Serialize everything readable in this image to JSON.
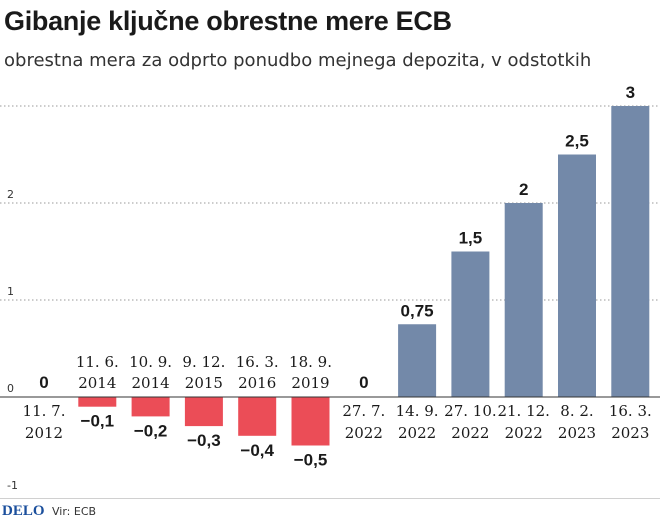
{
  "title": "Gibanje ključne obrestne mere ECB",
  "subtitle": "obrestna mera za odprto ponudbo mejnega depozita, v odstotkih",
  "footer": {
    "logo": "DELO",
    "source": "Vir: ECB"
  },
  "colors": {
    "positive": "#7389a9",
    "negative": "#eb4d57",
    "grid": "#999999",
    "text": "#1a1a1a"
  },
  "chart_data": {
    "type": "bar",
    "title": "Gibanje ključne obrestne mere ECB",
    "subtitle": "obrestna mera za odprto ponudbo mejnega depozita, v odstotkih",
    "xlabel": "",
    "ylabel": "",
    "ylim": [
      -1,
      3
    ],
    "yticks": [
      -1,
      0,
      1,
      2
    ],
    "ytick_labels": [
      "-1",
      "0",
      "1",
      "2"
    ],
    "grid": true,
    "categories": [
      [
        "11. 7.",
        "2012"
      ],
      [
        "11. 6.",
        "2014"
      ],
      [
        "10. 9.",
        "2014"
      ],
      [
        "9. 12.",
        "2015"
      ],
      [
        "16. 3.",
        "2016"
      ],
      [
        "18. 9.",
        "2019"
      ],
      [
        "27. 7.",
        "2022"
      ],
      [
        "14. 9.",
        "2022"
      ],
      [
        "27. 10.",
        "2022"
      ],
      [
        "21. 12.",
        "2022"
      ],
      [
        "8. 2.",
        "2023"
      ],
      [
        "16. 3.",
        "2023"
      ]
    ],
    "values": [
      0,
      -0.1,
      -0.2,
      -0.3,
      -0.4,
      -0.5,
      0,
      0.75,
      1.5,
      2,
      2.5,
      3
    ],
    "value_labels": [
      "0",
      "−0,1",
      "−0,2",
      "−0,3",
      "−0,4",
      "−0,5",
      "0",
      "0,75",
      "1,5",
      "2",
      "2,5",
      "3"
    ]
  }
}
